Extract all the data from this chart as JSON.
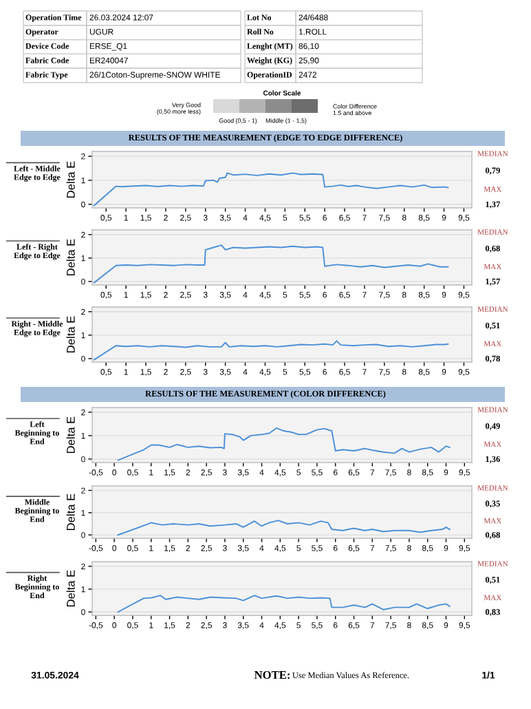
{
  "chart_data": [
    {
      "type": "other",
      "annotations": [
        "Operation Time",
        "26.03.2024 12:07",
        "Operator",
        "UGUR",
        "Device Code",
        "ERSE_Q1",
        "Fabric Code",
        "ER240047",
        "Fabric Type",
        "26/1Coton-Supreme-SNOW WHITE",
        "Lot No",
        "24/6488",
        "Roll No",
        "1.ROLL",
        "Lenght (MT)",
        "86,10",
        "Weight (KG)",
        "25,90",
        "OperationID",
        "2472",
        "Color Scale",
        "Very Good\n(0,50 more less)",
        "Good (0,5 - 1)",
        "Middle (1 - 1,5)",
        "Color Difference\n1.5 and above"
      ],
      "colors": [
        "#d9d9d9",
        "#b3b3b3",
        "#8c8c8c",
        "#6d6d6d"
      ]
    },
    {
      "type": "line",
      "subtitle": "RESULTS OF THE MEASUREMENT (EDGE TO EDGE DIFFERENCE)",
      "title": "Left - Middle\nEdge to Edge",
      "ylabel": "Delta E",
      "annotations": [
        "MEDIAN",
        "0,79",
        "MAX",
        "1,37"
      ],
      "grid": "y",
      "xlim": [
        0.15,
        9.7
      ],
      "ylim": [
        -0.15,
        2.2
      ],
      "yticks": [
        0,
        1,
        2
      ],
      "xticks": [
        {
          "value": 0.5,
          "label": "0,5"
        },
        1,
        {
          "value": 1.5,
          "label": "1,5"
        },
        2,
        {
          "value": 2.5,
          "label": "2,5"
        },
        3,
        {
          "value": 3.5,
          "label": "3,5"
        },
        4,
        {
          "value": 4.5,
          "label": "4,5"
        },
        5,
        {
          "value": 5.5,
          "label": "5,5"
        },
        6,
        {
          "value": 6.5,
          "label": "6,5"
        },
        7,
        {
          "value": 7.5,
          "label": "7,5"
        },
        8,
        {
          "value": 8.5,
          "label": "8,5"
        },
        9,
        {
          "value": 9.5,
          "label": "9,5"
        }
      ],
      "x": [
        0.2,
        0.75,
        0.9,
        1.2,
        1.5,
        1.8,
        2.1,
        2.4,
        2.7,
        2.95,
        3.0,
        3.2,
        3.3,
        3.35,
        3.5,
        3.55,
        3.7,
        4.0,
        4.3,
        4.6,
        4.9,
        5.2,
        5.4,
        5.7,
        5.95,
        6.0,
        6.2,
        6.4,
        6.6,
        6.8,
        7.0,
        7.3,
        7.6,
        7.9,
        8.2,
        8.5,
        8.7,
        9.0,
        9.1
      ],
      "series": [
        {
          "color": "#4a90d9",
          "values": [
            -0.05,
            0.75,
            0.73,
            0.76,
            0.78,
            0.74,
            0.78,
            0.75,
            0.78,
            0.76,
            0.98,
            1.0,
            0.92,
            1.08,
            1.12,
            1.3,
            1.22,
            1.25,
            1.2,
            1.26,
            1.22,
            1.3,
            1.24,
            1.26,
            1.24,
            0.72,
            0.75,
            0.8,
            0.74,
            0.78,
            0.72,
            0.66,
            0.72,
            0.78,
            0.72,
            0.8,
            0.7,
            0.72,
            0.7
          ]
        }
      ]
    },
    {
      "type": "line",
      "title": "Left - Right\nEdge to Edge",
      "ylabel": "Delta E",
      "annotations": [
        "MEDIAN",
        "0,68",
        "MAX",
        "1,57"
      ],
      "grid": "y",
      "xlim": [
        0.15,
        9.7
      ],
      "ylim": [
        -0.15,
        2.2
      ],
      "yticks": [
        0,
        1,
        2
      ],
      "xticks": [
        {
          "value": 0.5,
          "label": "0,5"
        },
        1,
        {
          "value": 1.5,
          "label": "1,5"
        },
        2,
        {
          "value": 2.5,
          "label": "2,5"
        },
        3,
        {
          "value": 3.5,
          "label": "3,5"
        },
        4,
        {
          "value": 4.5,
          "label": "4,5"
        },
        5,
        {
          "value": 5.5,
          "label": "5,5"
        },
        6,
        {
          "value": 6.5,
          "label": "6,5"
        },
        7,
        {
          "value": 7.5,
          "label": "7,5"
        },
        8,
        {
          "value": 8.5,
          "label": "8,5"
        },
        9,
        {
          "value": 9.5,
          "label": "9,5"
        }
      ],
      "x": [
        0.2,
        0.75,
        1.0,
        1.3,
        1.6,
        1.9,
        2.2,
        2.5,
        2.8,
        2.98,
        3.0,
        3.2,
        3.4,
        3.5,
        3.7,
        4.0,
        4.3,
        4.6,
        4.9,
        5.2,
        5.5,
        5.8,
        5.95,
        6.0,
        6.3,
        6.6,
        6.9,
        7.2,
        7.5,
        7.8,
        8.1,
        8.4,
        8.6,
        8.9,
        9.1
      ],
      "series": [
        {
          "color": "#4a90d9",
          "values": [
            -0.05,
            0.68,
            0.7,
            0.68,
            0.72,
            0.7,
            0.68,
            0.72,
            0.7,
            0.7,
            1.35,
            1.45,
            1.55,
            1.35,
            1.45,
            1.42,
            1.45,
            1.48,
            1.45,
            1.5,
            1.45,
            1.48,
            1.45,
            0.65,
            0.72,
            0.68,
            0.62,
            0.68,
            0.6,
            0.65,
            0.7,
            0.65,
            0.75,
            0.62,
            0.62
          ]
        }
      ]
    },
    {
      "type": "line",
      "title": "Right - Middle\nEdge to Edge",
      "ylabel": "Delta E",
      "annotations": [
        "MEDIAN",
        "0,51",
        "MAX",
        "0,78"
      ],
      "grid": "y",
      "xlim": [
        0.15,
        9.7
      ],
      "ylim": [
        -0.15,
        2.2
      ],
      "yticks": [
        0,
        1,
        2
      ],
      "xticks": [
        {
          "value": 0.5,
          "label": "0,5"
        },
        1,
        {
          "value": 1.5,
          "label": "1,5"
        },
        2,
        {
          "value": 2.5,
          "label": "2,5"
        },
        3,
        {
          "value": 3.5,
          "label": "3,5"
        },
        4,
        {
          "value": 4.5,
          "label": "4,5"
        },
        5,
        {
          "value": 5.5,
          "label": "5,5"
        },
        6,
        {
          "value": 6.5,
          "label": "6,5"
        },
        7,
        {
          "value": 7.5,
          "label": "7,5"
        },
        8,
        {
          "value": 8.5,
          "label": "8,5"
        },
        9,
        {
          "value": 9.5,
          "label": "9,5"
        }
      ],
      "x": [
        0.2,
        0.75,
        1.0,
        1.3,
        1.6,
        1.9,
        2.2,
        2.5,
        2.8,
        3.1,
        3.4,
        3.5,
        3.6,
        3.9,
        4.2,
        4.5,
        4.8,
        5.1,
        5.4,
        5.7,
        6.0,
        6.2,
        6.3,
        6.4,
        6.7,
        7.0,
        7.3,
        7.6,
        7.9,
        8.2,
        8.5,
        8.8,
        9.0,
        9.1
      ],
      "series": [
        {
          "color": "#4a90d9",
          "values": [
            -0.05,
            0.55,
            0.52,
            0.55,
            0.5,
            0.55,
            0.52,
            0.48,
            0.55,
            0.5,
            0.5,
            0.68,
            0.5,
            0.55,
            0.52,
            0.55,
            0.5,
            0.55,
            0.6,
            0.58,
            0.62,
            0.58,
            0.75,
            0.58,
            0.55,
            0.58,
            0.6,
            0.52,
            0.55,
            0.5,
            0.55,
            0.6,
            0.6,
            0.62
          ]
        }
      ]
    },
    {
      "type": "line",
      "subtitle": "RESULTS OF THE MEASUREMENT (COLOR DIFFERENCE)",
      "title": "Left\nBeginning to\nEnd",
      "ylabel": "Delta E",
      "annotations": [
        "MEDIAN",
        "0,49",
        "MAX",
        "1,36"
      ],
      "grid": "y",
      "xlim": [
        -0.6,
        9.7
      ],
      "ylim": [
        -0.15,
        2.2
      ],
      "yticks": [
        0,
        1,
        2
      ],
      "xticks": [
        {
          "value": -0.5,
          "label": "-0,5"
        },
        0,
        {
          "value": 0.5,
          "label": "0,5"
        },
        1,
        {
          "value": 1.5,
          "label": "1,5"
        },
        2,
        {
          "value": 2.5,
          "label": "2,5"
        },
        3,
        {
          "value": 3.5,
          "label": "3,5"
        },
        4,
        {
          "value": 4.5,
          "label": "4,5"
        },
        5,
        {
          "value": 5.5,
          "label": "5,5"
        },
        6,
        {
          "value": 6.5,
          "label": "6,5"
        },
        7,
        {
          "value": 7.5,
          "label": "7,5"
        },
        8,
        {
          "value": 8.5,
          "label": "8,5"
        },
        9,
        {
          "value": 9.5,
          "label": "9,5"
        }
      ],
      "x": [
        0.1,
        0.8,
        1.0,
        1.2,
        1.5,
        1.7,
        2.0,
        2.3,
        2.6,
        2.9,
        2.98,
        3.0,
        3.2,
        3.4,
        3.5,
        3.7,
        4.0,
        4.2,
        4.4,
        4.6,
        4.8,
        5.0,
        5.2,
        5.5,
        5.7,
        5.9,
        6.0,
        6.2,
        6.5,
        6.8,
        7.0,
        7.3,
        7.6,
        7.8,
        8.0,
        8.3,
        8.6,
        8.8,
        9.0,
        9.1
      ],
      "series": [
        {
          "color": "#4a90d9",
          "values": [
            -0.05,
            0.4,
            0.6,
            0.6,
            0.5,
            0.62,
            0.5,
            0.55,
            0.48,
            0.5,
            0.45,
            1.08,
            1.05,
            0.95,
            0.8,
            1.0,
            1.05,
            1.1,
            1.32,
            1.2,
            1.15,
            1.05,
            1.05,
            1.25,
            1.3,
            1.2,
            0.35,
            0.4,
            0.35,
            0.45,
            0.38,
            0.3,
            0.25,
            0.45,
            0.3,
            0.42,
            0.5,
            0.3,
            0.55,
            0.5
          ]
        }
      ]
    },
    {
      "type": "line",
      "title": "Middle\nBeginning to\nEnd",
      "ylabel": "Delta E",
      "annotations": [
        "MEDIAN",
        "0,35",
        "MAX",
        "0,68"
      ],
      "grid": "y",
      "xlim": [
        -0.6,
        9.7
      ],
      "ylim": [
        -0.15,
        2.2
      ],
      "yticks": [
        0,
        1,
        2
      ],
      "xticks": [
        {
          "value": -0.5,
          "label": "-0,5"
        },
        0,
        {
          "value": 0.5,
          "label": "0,5"
        },
        1,
        {
          "value": 1.5,
          "label": "1,5"
        },
        2,
        {
          "value": 2.5,
          "label": "2,5"
        },
        3,
        {
          "value": 3.5,
          "label": "3,5"
        },
        4,
        {
          "value": 4.5,
          "label": "4,5"
        },
        5,
        {
          "value": 5.5,
          "label": "5,5"
        },
        6,
        {
          "value": 6.5,
          "label": "6,5"
        },
        7,
        {
          "value": 7.5,
          "label": "7,5"
        },
        8,
        {
          "value": 8.5,
          "label": "8,5"
        },
        9,
        {
          "value": 9.5,
          "label": "9,5"
        }
      ],
      "x": [
        0.1,
        0.85,
        1.0,
        1.3,
        1.6,
        2.0,
        2.3,
        2.6,
        3.0,
        3.3,
        3.5,
        3.8,
        4.0,
        4.2,
        4.45,
        4.7,
        5.0,
        5.3,
        5.6,
        5.8,
        5.9,
        6.2,
        6.5,
        6.8,
        7.0,
        7.3,
        7.6,
        8.0,
        8.3,
        8.6,
        8.9,
        9.0,
        9.1
      ],
      "series": [
        {
          "color": "#4a90d9",
          "values": [
            0.0,
            0.45,
            0.55,
            0.45,
            0.5,
            0.45,
            0.5,
            0.4,
            0.45,
            0.5,
            0.35,
            0.62,
            0.4,
            0.55,
            0.65,
            0.5,
            0.55,
            0.45,
            0.62,
            0.55,
            0.25,
            0.2,
            0.3,
            0.2,
            0.25,
            0.15,
            0.2,
            0.2,
            0.12,
            0.2,
            0.25,
            0.35,
            0.25
          ]
        }
      ]
    },
    {
      "type": "line",
      "title": "Right\nBeginning to\nEnd",
      "ylabel": "Delta E",
      "annotations": [
        "MEDIAN",
        "0,51",
        "MAX",
        "0,83"
      ],
      "grid": "y",
      "xlim": [
        -0.6,
        9.7
      ],
      "ylim": [
        -0.15,
        2.2
      ],
      "yticks": [
        0,
        1,
        2
      ],
      "xticks": [
        {
          "value": -0.5,
          "label": "-0,5"
        },
        0,
        {
          "value": 0.5,
          "label": "0,5"
        },
        1,
        {
          "value": 1.5,
          "label": "1,5"
        },
        2,
        {
          "value": 2.5,
          "label": "2,5"
        },
        3,
        {
          "value": 3.5,
          "label": "3,5"
        },
        4,
        {
          "value": 4.5,
          "label": "4,5"
        },
        5,
        {
          "value": 5.5,
          "label": "5,5"
        },
        6,
        {
          "value": 6.5,
          "label": "6,5"
        },
        7,
        {
          "value": 7.5,
          "label": "7,5"
        },
        8,
        {
          "value": 8.5,
          "label": "8,5"
        },
        9,
        {
          "value": 9.5,
          "label": "9,5"
        }
      ],
      "x": [
        0.1,
        0.8,
        1.0,
        1.25,
        1.4,
        1.7,
        2.0,
        2.3,
        2.6,
        3.0,
        3.3,
        3.5,
        3.8,
        4.0,
        4.4,
        4.7,
        5.0,
        5.3,
        5.6,
        5.85,
        5.9,
        6.2,
        6.5,
        6.8,
        7.0,
        7.3,
        7.6,
        8.0,
        8.2,
        8.5,
        8.8,
        9.0,
        9.1
      ],
      "series": [
        {
          "color": "#4a90d9",
          "values": [
            0.0,
            0.6,
            0.62,
            0.72,
            0.55,
            0.65,
            0.6,
            0.55,
            0.65,
            0.62,
            0.6,
            0.5,
            0.72,
            0.6,
            0.7,
            0.6,
            0.65,
            0.6,
            0.62,
            0.6,
            0.2,
            0.2,
            0.3,
            0.2,
            0.35,
            0.1,
            0.2,
            0.2,
            0.35,
            0.15,
            0.3,
            0.35,
            0.25
          ]
        }
      ]
    },
    {
      "type": "other",
      "annotations": [
        "31.05.2024",
        "NOTE:",
        "Use Median Values As Reference.",
        "1/1"
      ]
    }
  ]
}
